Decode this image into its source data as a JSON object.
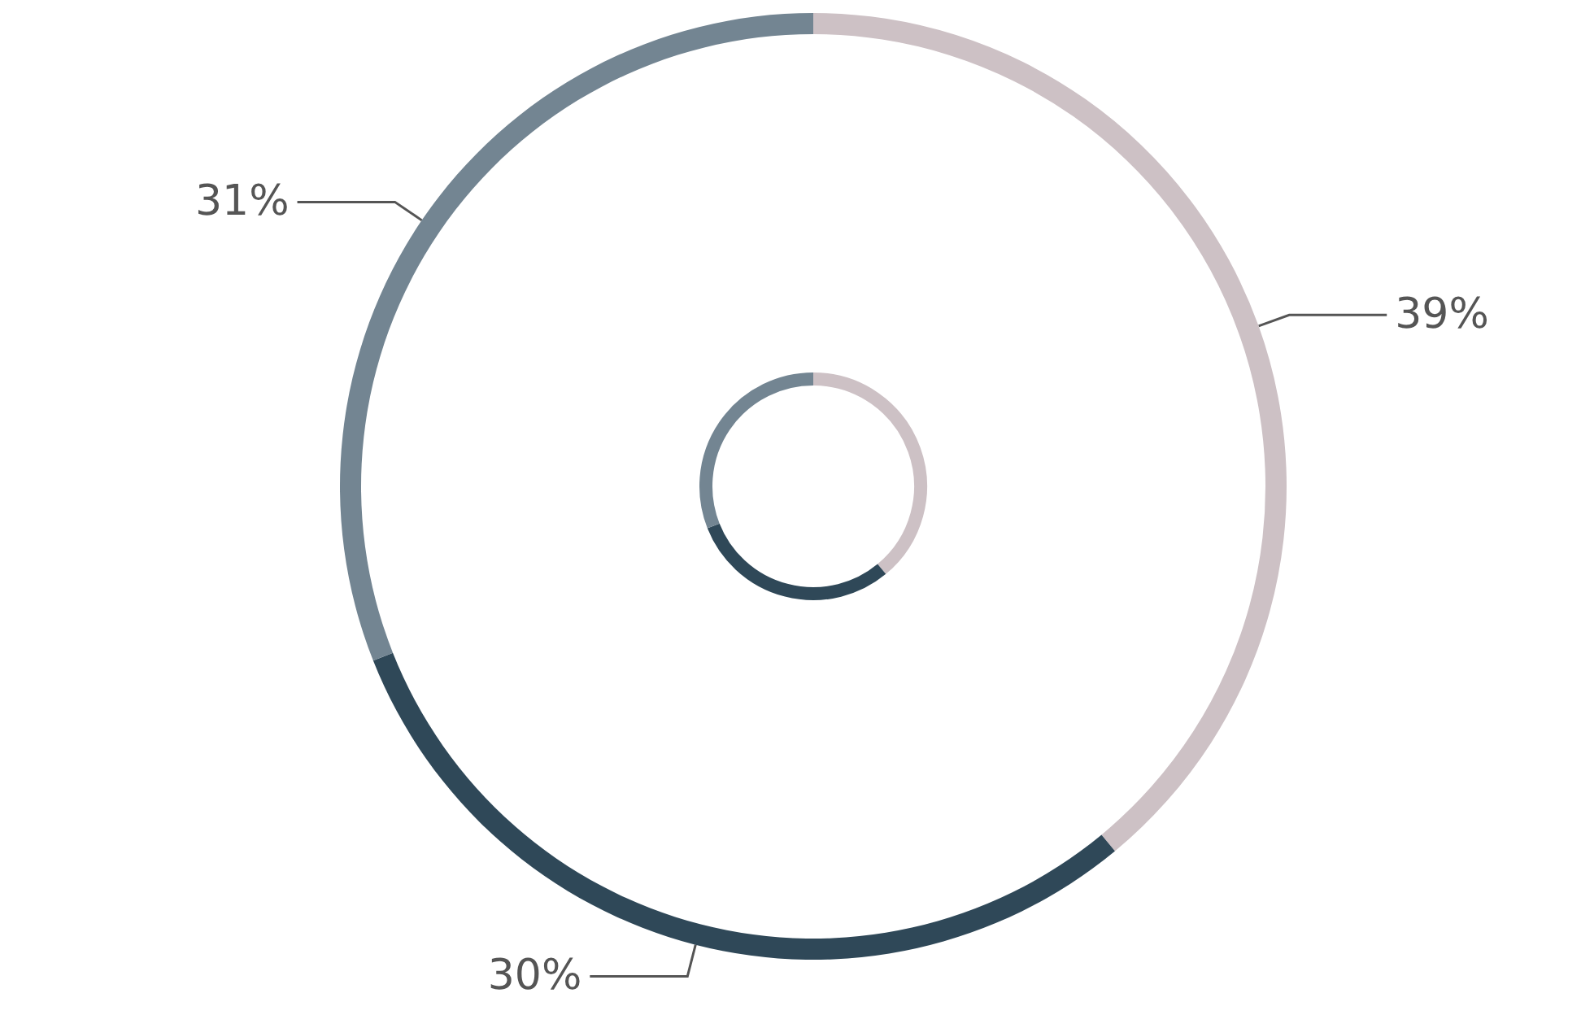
{
  "chart_data": {
    "type": "donut",
    "categories": [
      null,
      null,
      null
    ],
    "colors": [
      "#cdc1c5",
      "#2f4858",
      "#738592"
    ],
    "values": [
      39,
      30,
      31
    ],
    "value_labels": [
      "39%",
      "30%",
      "31%"
    ]
  }
}
